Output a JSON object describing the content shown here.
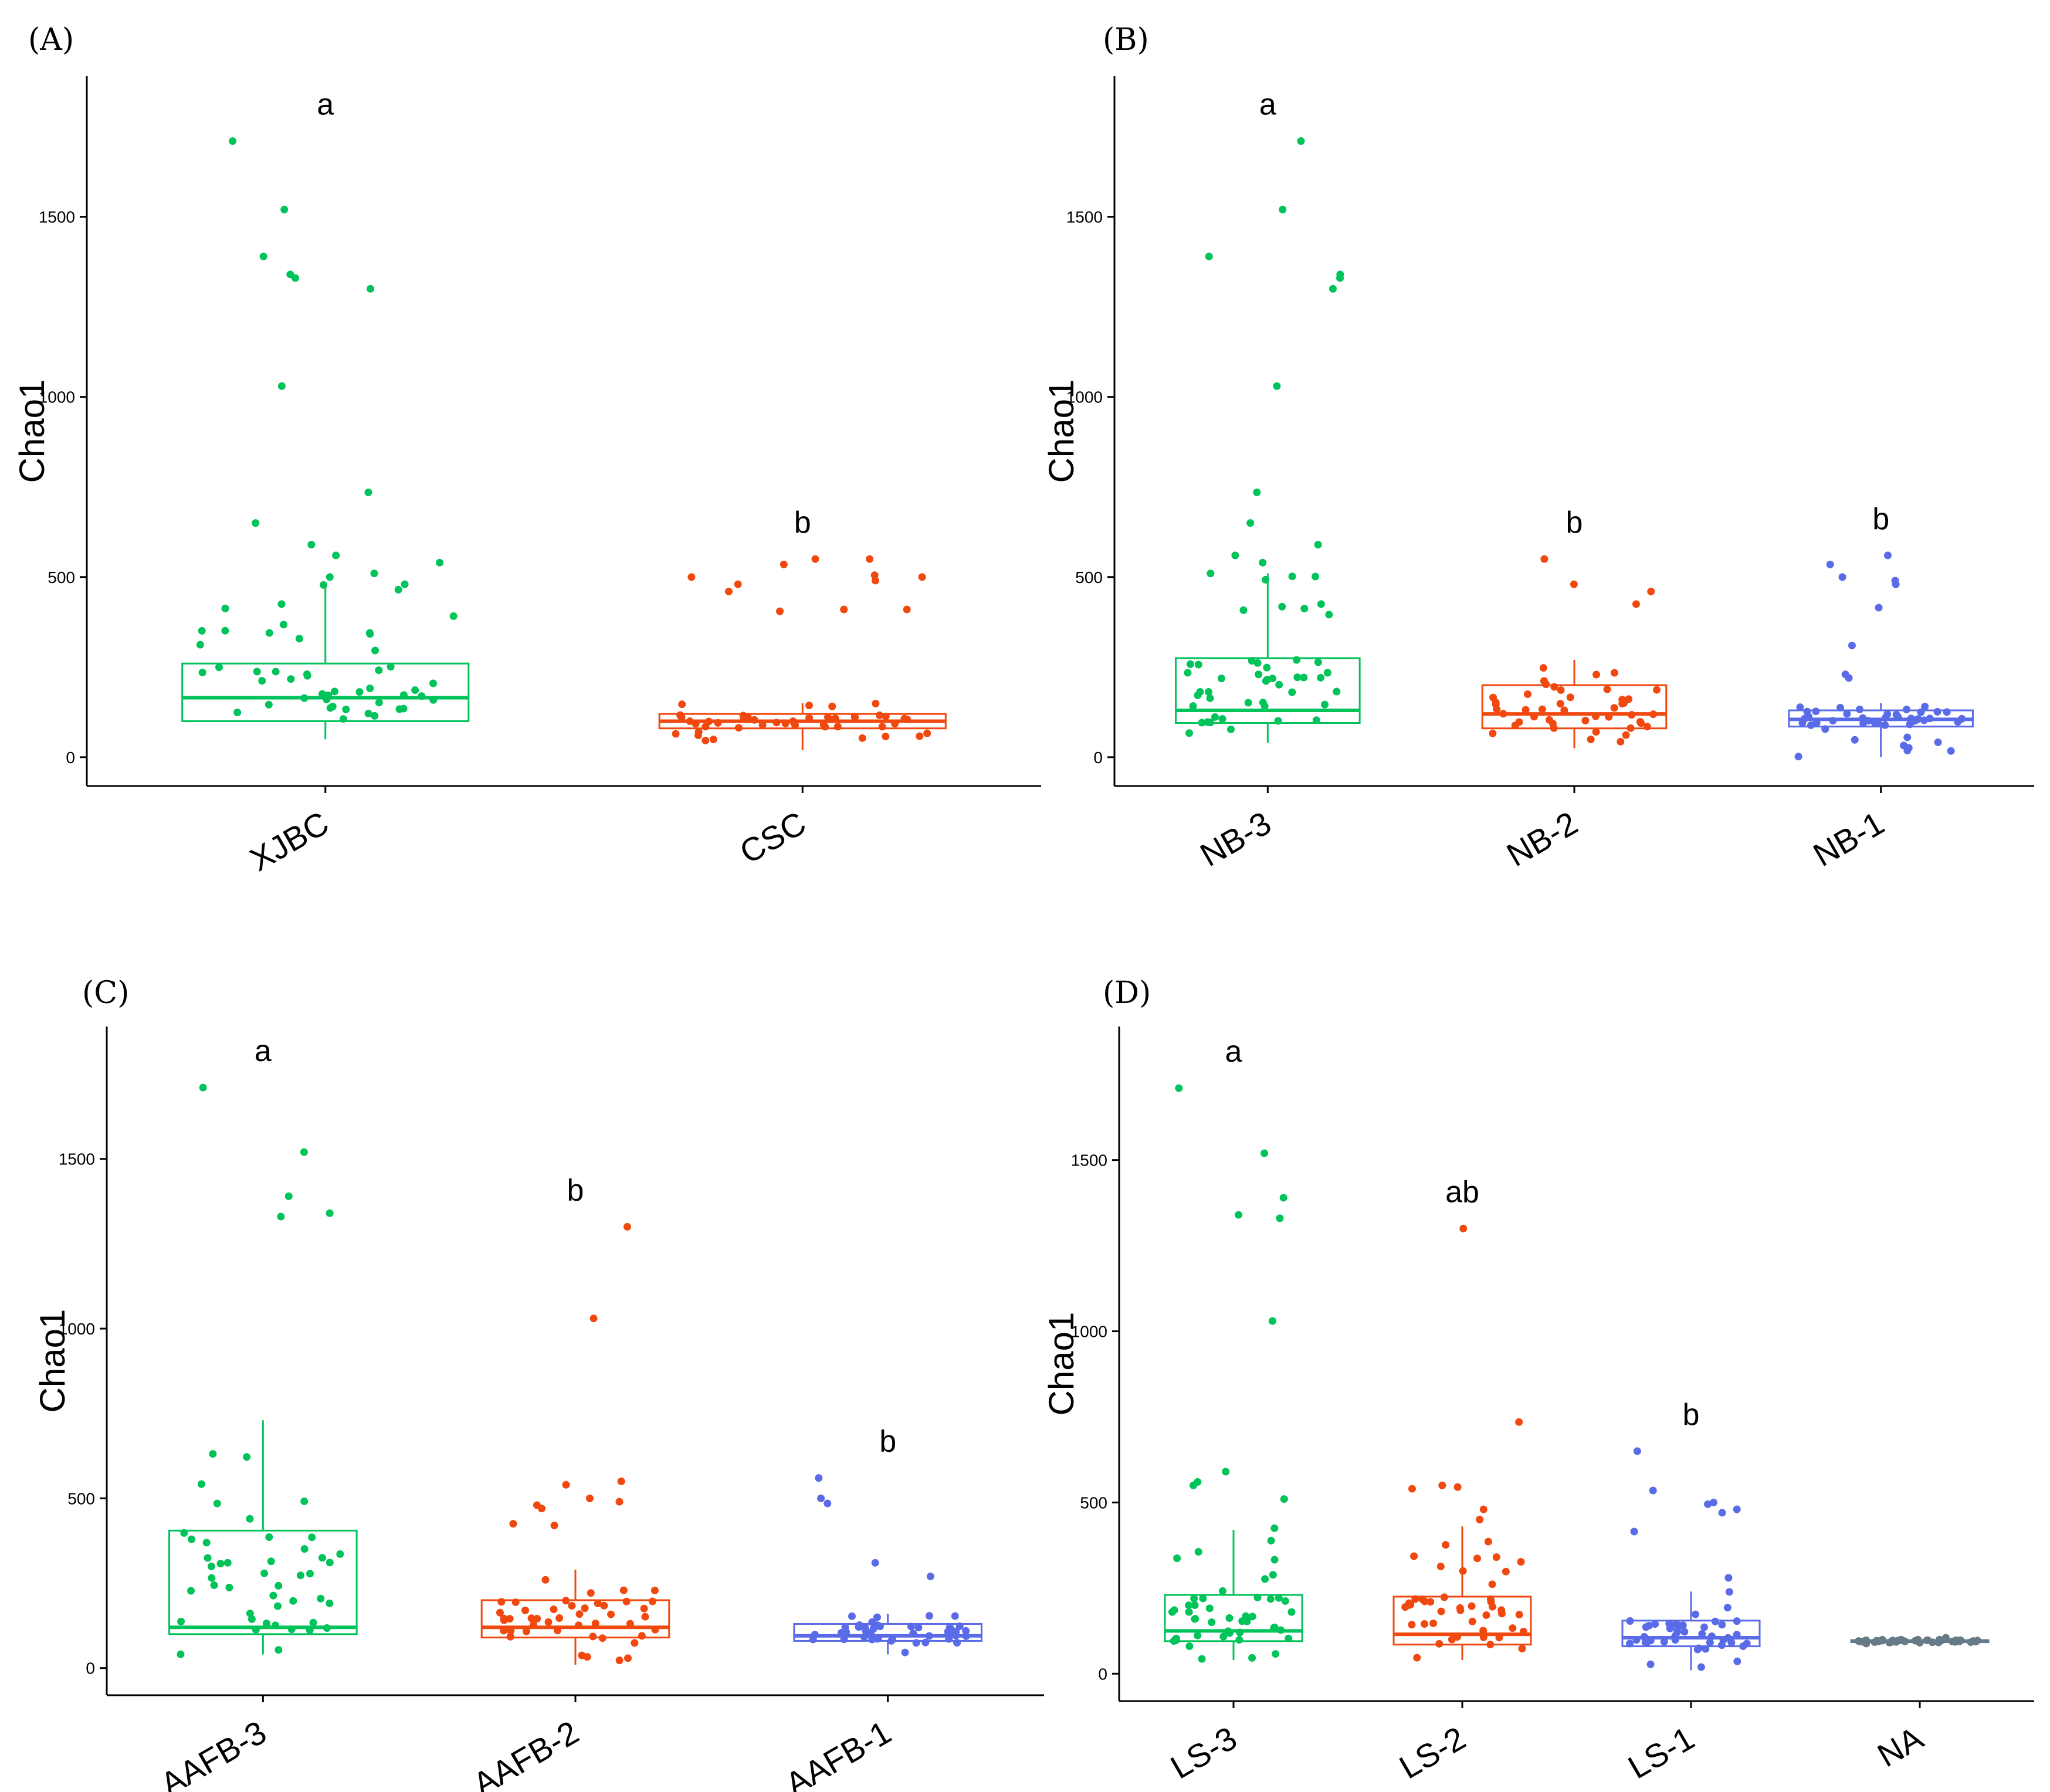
{
  "chart_data": [
    {
      "type": "box",
      "panel": "(A)",
      "ylabel": "Chao1",
      "ylim": [
        -80,
        1890
      ],
      "yticks": [
        "0",
        "500",
        "1000",
        "1500"
      ],
      "categories": [
        "XJBC",
        "CSC"
      ],
      "colors": [
        "#00c35a",
        "#f0480f"
      ],
      "letters": [
        "a",
        "b"
      ],
      "boxes": [
        {
          "whisker_low": 50,
          "q1": 100,
          "median": 165,
          "q3": 260,
          "whisker_high": 480,
          "outliers": [
            650,
            735,
            590,
            1030,
            1300,
            1340,
            1330,
            1390,
            1520,
            1710,
            560,
            540,
            510,
            500,
            480,
            465,
            425
          ]
        },
        {
          "whisker_low": 20,
          "q1": 80,
          "median": 100,
          "q3": 120,
          "whisker_high": 150,
          "outliers": [
            550,
            550,
            535,
            500,
            500,
            505,
            490,
            480,
            460,
            410,
            410,
            405
          ]
        }
      ]
    },
    {
      "type": "box",
      "panel": "(B)",
      "ylabel": "Chao1",
      "ylim": [
        -80,
        1890
      ],
      "yticks": [
        "0",
        "500",
        "1000",
        "1500"
      ],
      "categories": [
        "NB-3",
        "NB-2",
        "NB-1"
      ],
      "colors": [
        "#00c35a",
        "#f0480f",
        "#5a6be8"
      ],
      "letters": [
        "a",
        "b",
        "b"
      ],
      "boxes": [
        {
          "whisker_low": 40,
          "q1": 95,
          "median": 130,
          "q3": 275,
          "whisker_high": 510,
          "outliers": [
            650,
            735,
            590,
            1030,
            1300,
            1340,
            1330,
            1390,
            1520,
            1710,
            560,
            540,
            510,
            425
          ]
        },
        {
          "whisker_low": 25,
          "q1": 80,
          "median": 120,
          "q3": 200,
          "whisker_high": 270,
          "outliers": [
            550,
            480,
            460,
            425
          ]
        },
        {
          "whisker_low": 0,
          "q1": 85,
          "median": 105,
          "q3": 130,
          "whisker_high": 150,
          "outliers": [
            560,
            535,
            500,
            490,
            480,
            415,
            310,
            230,
            220
          ]
        }
      ]
    },
    {
      "type": "box",
      "panel": "(C)",
      "ylabel": "Chao1",
      "ylim": [
        -80,
        1890
      ],
      "yticks": [
        "0",
        "500",
        "1000",
        "1500"
      ],
      "categories": [
        "AAFB-3",
        "AAFB-2",
        "AAFB-1"
      ],
      "colors": [
        "#00c35a",
        "#f0480f",
        "#5a6be8"
      ],
      "letters": [
        "a",
        "b",
        "b"
      ],
      "boxes": [
        {
          "whisker_low": 40,
          "q1": 100,
          "median": 120,
          "q3": 405,
          "whisker_high": 730,
          "outliers": [
            1710,
            1520,
            1390,
            1340,
            1330
          ]
        },
        {
          "whisker_low": 10,
          "q1": 90,
          "median": 120,
          "q3": 200,
          "whisker_high": 290,
          "outliers": [
            1300,
            1030,
            550,
            540,
            500,
            490,
            480,
            470,
            425,
            420
          ]
        },
        {
          "whisker_low": 40,
          "q1": 80,
          "median": 95,
          "q3": 130,
          "whisker_high": 160,
          "outliers": [
            560,
            500,
            485,
            310,
            270
          ]
        }
      ]
    },
    {
      "type": "box",
      "panel": "(D)",
      "ylabel": "Chao1",
      "ylim": [
        -80,
        1890
      ],
      "yticks": [
        "0",
        "500",
        "1000",
        "1500"
      ],
      "categories": [
        "LS-3",
        "LS-2",
        "LS-1",
        "NA"
      ],
      "colors": [
        "#00c35a",
        "#f0480f",
        "#5a6be8",
        "#667a88"
      ],
      "letters": [
        "a",
        "ab",
        "b",
        ""
      ],
      "boxes": [
        {
          "whisker_low": 40,
          "q1": 95,
          "median": 125,
          "q3": 230,
          "whisker_high": 420,
          "outliers": [
            1710,
            1520,
            1390,
            1340,
            1330,
            1030,
            590,
            560,
            550,
            510,
            425
          ]
        },
        {
          "whisker_low": 40,
          "q1": 85,
          "median": 115,
          "q3": 225,
          "whisker_high": 430,
          "outliers": [
            1300,
            735,
            550,
            545,
            540,
            480,
            450
          ]
        },
        {
          "whisker_low": 10,
          "q1": 80,
          "median": 105,
          "q3": 155,
          "whisker_high": 240,
          "outliers": [
            650,
            535,
            500,
            495,
            480,
            470,
            415,
            280
          ]
        },
        {
          "whisker_low": 90,
          "q1": 92,
          "median": 95,
          "q3": 98,
          "whisker_high": 100,
          "outliers": [
            105,
            88
          ]
        }
      ]
    }
  ]
}
